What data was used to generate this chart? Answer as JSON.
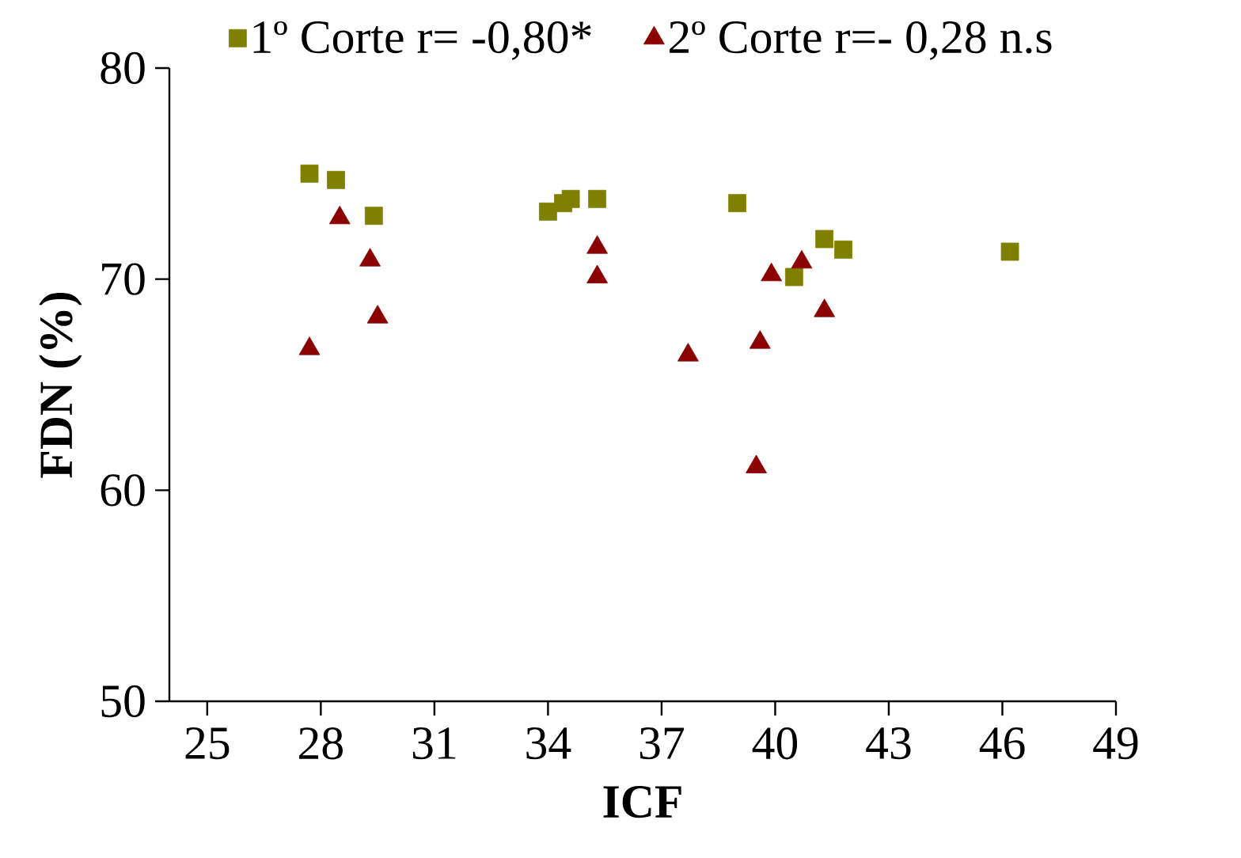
{
  "chart_data": {
    "type": "scatter",
    "xlabel": "ICF",
    "ylabel": "FDN (%)",
    "xlim": [
      24,
      49
    ],
    "ylim": [
      50,
      80
    ],
    "xticks": [
      25,
      28,
      31,
      34,
      37,
      40,
      43,
      46,
      49
    ],
    "yticks": [
      50,
      60,
      70,
      80
    ],
    "legend": "top",
    "series": [
      {
        "name": "1º Corte r= -0,80*",
        "color": "#808000",
        "marker": "square",
        "x": [
          27.7,
          28.4,
          29.4,
          34.0,
          34.4,
          34.6,
          35.3,
          39.0,
          40.5,
          41.3,
          41.8,
          46.2
        ],
        "values": [
          75.0,
          74.7,
          73.0,
          73.2,
          73.6,
          73.8,
          73.8,
          73.6,
          70.1,
          71.9,
          71.4,
          71.3
        ]
      },
      {
        "name": "2º Corte r=- 0,28 n.s",
        "color": "#8b0000",
        "marker": "triangle",
        "x": [
          27.7,
          28.5,
          29.3,
          29.5,
          35.3,
          35.3,
          37.7,
          39.5,
          39.6,
          39.9,
          40.7,
          41.3
        ],
        "values": [
          66.7,
          72.9,
          70.9,
          68.2,
          71.5,
          70.1,
          66.4,
          61.1,
          67.0,
          70.2,
          70.8,
          68.5
        ]
      }
    ]
  }
}
